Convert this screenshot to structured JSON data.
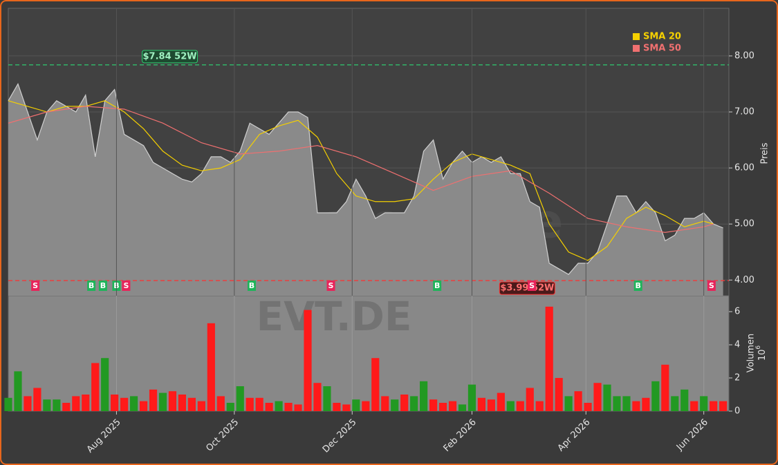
{
  "chart_data": [
    {
      "type": "area",
      "ylabel": "Preis",
      "watermark": "forexsignale.trade",
      "grid": true,
      "legend": "upper right",
      "color": "#d0d0d0",
      "fill": "#8a8a8a",
      "x": [
        0,
        5,
        10,
        15,
        20,
        25,
        30,
        35,
        40,
        45,
        50,
        55,
        60,
        65,
        70,
        75,
        80,
        85,
        90,
        95,
        100,
        105,
        110,
        115,
        120,
        125,
        130,
        135,
        140,
        145,
        150,
        155,
        160,
        165,
        170,
        175,
        180,
        185,
        190,
        195,
        200,
        205,
        210,
        215,
        220,
        225,
        230,
        235,
        240,
        245,
        250,
        255,
        260,
        265,
        270,
        275,
        280,
        285,
        290,
        295,
        300,
        305,
        310,
        315,
        320,
        325,
        330,
        335,
        340,
        345,
        350,
        355,
        360,
        365,
        370
      ],
      "values": [
        7.2,
        7.5,
        7.0,
        6.5,
        7.0,
        7.2,
        7.1,
        7.0,
        7.3,
        6.2,
        7.2,
        7.4,
        6.6,
        6.5,
        6.4,
        6.1,
        6.0,
        5.9,
        5.8,
        5.75,
        5.9,
        6.2,
        6.2,
        6.1,
        6.3,
        6.8,
        6.7,
        6.6,
        6.8,
        7.0,
        7.0,
        6.9,
        5.2,
        5.2,
        5.2,
        5.4,
        5.8,
        5.5,
        5.1,
        5.2,
        5.2,
        5.2,
        5.5,
        6.3,
        6.5,
        5.8,
        6.1,
        6.3,
        6.1,
        6.2,
        6.1,
        6.2,
        5.9,
        5.9,
        5.4,
        5.3,
        4.3,
        4.2,
        4.1,
        4.3,
        4.3,
        4.5,
        5.0,
        5.5,
        5.5,
        5.2,
        5.4,
        5.2,
        4.7,
        4.8,
        5.1,
        5.1,
        5.2,
        5.0,
        4.93
      ],
      "series": [
        {
          "name": "SMA 20",
          "color": "#f5d000",
          "x": [
            0,
            10,
            20,
            30,
            40,
            50,
            60,
            70,
            80,
            90,
            100,
            110,
            120,
            130,
            140,
            150,
            160,
            170,
            180,
            190,
            200,
            210,
            220,
            230,
            240,
            250,
            260,
            270,
            280,
            290,
            300,
            310,
            320,
            330,
            340,
            350,
            360,
            365
          ],
          "values": [
            7.2,
            7.1,
            7.0,
            7.1,
            7.1,
            7.2,
            7.0,
            6.7,
            6.3,
            6.05,
            5.95,
            6.0,
            6.15,
            6.6,
            6.75,
            6.85,
            6.55,
            5.9,
            5.5,
            5.4,
            5.4,
            5.45,
            5.8,
            6.1,
            6.25,
            6.15,
            6.05,
            5.9,
            5.0,
            4.5,
            4.35,
            4.6,
            5.1,
            5.3,
            5.15,
            4.95,
            5.05,
            5.0
          ]
        },
        {
          "name": "SMA 50",
          "color": "#f07070",
          "x": [
            0,
            20,
            40,
            60,
            80,
            100,
            120,
            140,
            160,
            180,
            200,
            220,
            240,
            260,
            280,
            300,
            320,
            340,
            360,
            365
          ],
          "values": [
            6.8,
            7.0,
            7.1,
            7.05,
            6.8,
            6.45,
            6.25,
            6.3,
            6.4,
            6.2,
            5.9,
            5.6,
            5.85,
            5.95,
            5.55,
            5.1,
            4.95,
            4.85,
            4.95,
            5.0
          ]
        }
      ],
      "reference_lines": [
        {
          "value": 7.84,
          "label": "$7.84 52W",
          "color": "#2ecc71",
          "label_x": 70
        },
        {
          "value": 3.99,
          "label": "$3.99 52W",
          "color": "#ff3030",
          "label_x": 255
        }
      ],
      "signals": [
        {
          "x": 14,
          "label": "S",
          "color": "#e8245a"
        },
        {
          "x": 43,
          "label": "B",
          "color": "#1fb45a"
        },
        {
          "x": 49,
          "label": "B",
          "color": "#1fb45a"
        },
        {
          "x": 56,
          "label": "B",
          "color": "#1fb45a"
        },
        {
          "x": 61,
          "label": "S",
          "color": "#e8245a"
        },
        {
          "x": 126,
          "label": "B",
          "color": "#1fb45a"
        },
        {
          "x": 167,
          "label": "S",
          "color": "#e8245a"
        },
        {
          "x": 222,
          "label": "B",
          "color": "#1fb45a"
        },
        {
          "x": 271,
          "label": "S",
          "color": "#e8245a"
        },
        {
          "x": 326,
          "label": "B",
          "color": "#1fb45a"
        },
        {
          "x": 364,
          "label": "S",
          "color": "#e8245a"
        }
      ],
      "xlim": [
        0,
        373
      ],
      "ylim": [
        3.72,
        8.85
      ],
      "yticks": [
        {
          "value": 4,
          "label": "4.00"
        },
        {
          "value": 5,
          "label": "5.00"
        },
        {
          "value": 6,
          "label": "6.00"
        },
        {
          "value": 7,
          "label": "7.00"
        },
        {
          "value": 8,
          "label": "8.00"
        }
      ]
    },
    {
      "type": "bar",
      "ylabel": "Volumen",
      "scale_label": {
        "base": "10",
        "exponent": "6"
      },
      "watermark": "EVT.DE",
      "grid": true,
      "x": [
        0,
        5,
        10,
        15,
        20,
        25,
        30,
        35,
        40,
        45,
        50,
        55,
        60,
        65,
        70,
        75,
        80,
        85,
        90,
        95,
        100,
        105,
        110,
        115,
        120,
        125,
        130,
        135,
        140,
        145,
        150,
        155,
        160,
        165,
        170,
        175,
        180,
        185,
        190,
        195,
        200,
        205,
        210,
        215,
        220,
        225,
        230,
        235,
        240,
        245,
        250,
        255,
        260,
        265,
        270,
        275,
        280,
        285,
        290,
        295,
        300,
        305,
        310,
        315,
        320,
        325,
        330,
        335,
        340,
        345,
        350,
        355,
        360,
        365,
        370
      ],
      "values": [
        0.8,
        2.4,
        0.9,
        1.4,
        0.7,
        0.7,
        0.5,
        0.9,
        1.0,
        2.9,
        3.2,
        1.0,
        0.8,
        0.9,
        0.6,
        1.3,
        1.1,
        1.2,
        1.0,
        0.8,
        0.6,
        5.3,
        0.9,
        0.5,
        1.5,
        0.8,
        0.8,
        0.5,
        0.6,
        0.5,
        0.4,
        6.1,
        1.7,
        1.5,
        0.5,
        0.4,
        0.7,
        0.6,
        3.2,
        0.9,
        0.7,
        1.0,
        0.9,
        1.8,
        0.7,
        0.5,
        0.6,
        0.4,
        1.6,
        0.8,
        0.7,
        1.1,
        0.6,
        0.6,
        1.4,
        0.6,
        6.3,
        2.0,
        0.9,
        1.2,
        0.5,
        1.7,
        1.6,
        0.9,
        0.9,
        0.6,
        0.8,
        1.8,
        2.8,
        0.9,
        1.3,
        0.6,
        0.9,
        0.6,
        0.6
      ],
      "colors": [
        "#229922",
        "#229922",
        "#ff1a1a",
        "#ff1a1a",
        "#229922",
        "#229922",
        "#ff1a1a",
        "#ff1a1a",
        "#ff1a1a",
        "#ff1a1a",
        "#229922",
        "#ff1a1a",
        "#ff1a1a",
        "#229922",
        "#ff1a1a",
        "#ff1a1a",
        "#229922",
        "#ff1a1a",
        "#ff1a1a",
        "#ff1a1a",
        "#ff1a1a",
        "#ff1a1a",
        "#ff1a1a",
        "#229922",
        "#229922",
        "#ff1a1a",
        "#ff1a1a",
        "#ff1a1a",
        "#229922",
        "#ff1a1a",
        "#ff1a1a",
        "#ff1a1a",
        "#ff1a1a",
        "#229922",
        "#ff1a1a",
        "#ff1a1a",
        "#229922",
        "#ff1a1a",
        "#ff1a1a",
        "#ff1a1a",
        "#229922",
        "#ff1a1a",
        "#229922",
        "#229922",
        "#ff1a1a",
        "#ff1a1a",
        "#ff1a1a",
        "#229922",
        "#229922",
        "#ff1a1a",
        "#ff1a1a",
        "#ff1a1a",
        "#229922",
        "#ff1a1a",
        "#ff1a1a",
        "#ff1a1a",
        "#ff1a1a",
        "#ff1a1a",
        "#229922",
        "#ff1a1a",
        "#ff1a1a",
        "#ff1a1a",
        "#229922",
        "#229922",
        "#229922",
        "#ff1a1a",
        "#ff1a1a",
        "#229922",
        "#ff1a1a",
        "#229922",
        "#229922",
        "#ff1a1a",
        "#229922",
        "#ff1a1a",
        "#ff1a1a"
      ],
      "xlim": [
        0,
        373
      ],
      "ylim": [
        0,
        6.96
      ],
      "yticks": [
        0,
        2,
        4,
        6
      ],
      "xticks": [
        {
          "value": 56,
          "label": "Aug 2025"
        },
        {
          "value": 117,
          "label": "Oct 2025"
        },
        {
          "value": 178,
          "label": "Dec 2025"
        },
        {
          "value": 240,
          "label": "Feb 2026"
        },
        {
          "value": 299,
          "label": "Apr 2026"
        },
        {
          "value": 360,
          "label": "Jun 2026"
        }
      ]
    }
  ]
}
